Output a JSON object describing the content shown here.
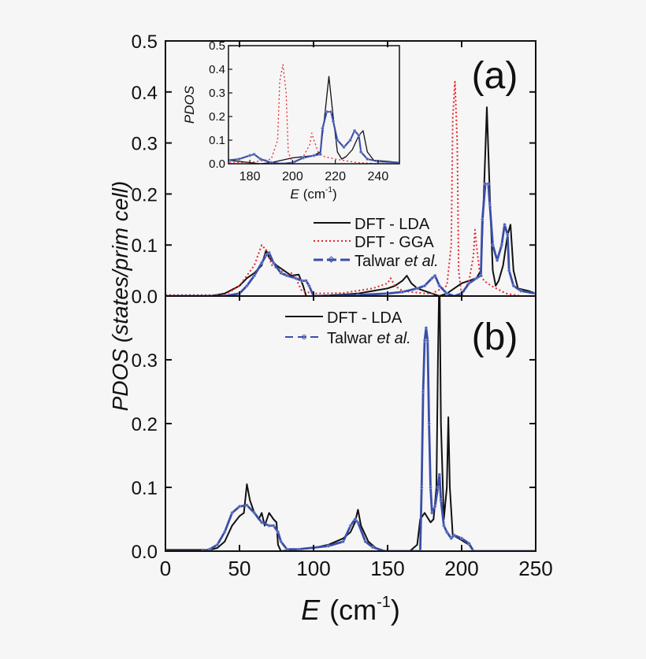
{
  "chart_data": [
    {
      "panel": "(a)",
      "type": "line",
      "xlabel": "E (cm-1)",
      "ylabel": "PDOS (states/prim cell)",
      "xlim": [
        0,
        250
      ],
      "ylim": [
        0,
        0.5
      ],
      "xticks": [
        "0",
        "50",
        "100",
        "150",
        "200",
        "250"
      ],
      "yticks": [
        "0.0",
        "0.1",
        "0.2",
        "0.3",
        "0.4",
        "0.5"
      ],
      "legend_position": "center-right",
      "series": [
        {
          "name": "DFT - LDA",
          "color": "#111111",
          "style": "solid",
          "x": [
            0,
            30,
            40,
            50,
            55,
            60,
            65,
            68,
            70,
            75,
            80,
            85,
            90,
            93,
            95,
            100,
            120,
            130,
            140,
            150,
            155,
            160,
            163,
            166,
            170,
            180,
            185,
            190,
            195,
            200,
            205,
            210,
            213,
            215,
            217,
            219,
            221,
            223,
            225,
            228,
            231,
            233,
            235,
            238,
            245,
            250
          ],
          "y": [
            0,
            0,
            0.005,
            0.02,
            0.035,
            0.045,
            0.06,
            0.09,
            0.075,
            0.06,
            0.05,
            0.04,
            0.042,
            0.02,
            0,
            0,
            0.003,
            0.005,
            0.01,
            0.015,
            0.02,
            0.03,
            0.04,
            0.025,
            0.015,
            0.005,
            0,
            0.005,
            0.015,
            0.025,
            0.03,
            0.035,
            0.05,
            0.2,
            0.37,
            0.2,
            0.05,
            0.02,
            0.03,
            0.06,
            0.12,
            0.14,
            0.05,
            0.015,
            0.01,
            0.005
          ]
        },
        {
          "name": "DFT - GGA",
          "color": "#e8262b",
          "style": "dotted",
          "x": [
            0,
            40,
            50,
            55,
            60,
            65,
            68,
            72,
            78,
            82,
            85,
            88,
            92,
            100,
            120,
            140,
            150,
            152,
            155,
            160,
            175,
            180,
            190,
            193,
            194,
            195.5,
            197,
            198,
            200,
            205,
            208,
            209,
            210,
            212,
            215,
            220,
            230,
            240,
            250
          ],
          "y": [
            0.002,
            0.002,
            0.02,
            0.04,
            0.06,
            0.1,
            0.09,
            0.06,
            0.05,
            0.04,
            0.045,
            0.035,
            0.01,
            0.005,
            0.006,
            0.015,
            0.025,
            0.035,
            0.02,
            0.01,
            0.005,
            0.005,
            0.02,
            0.1,
            0.35,
            0.42,
            0.3,
            0.05,
            0,
            0.03,
            0.08,
            0.13,
            0.1,
            0.05,
            0.03,
            0.02,
            0.005,
            0,
            0
          ]
        },
        {
          "name": "Talwar et al.",
          "color": "#3a4ea8",
          "style": "dash-dot-diamond",
          "x": [
            0,
            40,
            50,
            55,
            60,
            65,
            68,
            70,
            73,
            78,
            82,
            88,
            92,
            95,
            97,
            100,
            110,
            130,
            150,
            160,
            170,
            175,
            180,
            182,
            185,
            190,
            195,
            200,
            205,
            210,
            213,
            214,
            216,
            218,
            219,
            221,
            224,
            227,
            229,
            231,
            232,
            235,
            240,
            250
          ],
          "y": [
            0,
            0,
            0.005,
            0.02,
            0.04,
            0.065,
            0.08,
            0.085,
            0.065,
            0.045,
            0.04,
            0.035,
            0.03,
            0.03,
            0.02,
            0,
            0,
            0.002,
            0.005,
            0.008,
            0.015,
            0.02,
            0.035,
            0.04,
            0.02,
            0.005,
            0,
            0.005,
            0.025,
            0.035,
            0.04,
            0.15,
            0.22,
            0.22,
            0.18,
            0.1,
            0.07,
            0.1,
            0.14,
            0.12,
            0.05,
            0.02,
            0.01,
            0.005
          ]
        }
      ],
      "inset": {
        "xlabel": "E (cm-1)",
        "ylabel": "PDOS",
        "xlim": [
          170,
          250
        ],
        "ylim": [
          0,
          0.5
        ],
        "xticks": [
          "180",
          "200",
          "220",
          "240"
        ],
        "yticks": [
          "0.0",
          "0.1",
          "0.2",
          "0.3",
          "0.4",
          "0.5"
        ]
      }
    },
    {
      "panel": "(b)",
      "type": "line",
      "xlim": [
        0,
        250
      ],
      "ylim": [
        0,
        0.4
      ],
      "yticks": [
        "0.0",
        "0.1",
        "0.2",
        "0.3"
      ],
      "legend_position": "top-center",
      "series": [
        {
          "name": "DFT - LDA",
          "color": "#111111",
          "style": "solid",
          "x": [
            0,
            30,
            35,
            40,
            45,
            50,
            53,
            55,
            57,
            60,
            63,
            65,
            67,
            70,
            73,
            75,
            76,
            78,
            90,
            100,
            110,
            120,
            125,
            128,
            130,
            132,
            137,
            142,
            148,
            165,
            170,
            172,
            175,
            179,
            181,
            183,
            184,
            185,
            186,
            188,
            190,
            191,
            192,
            194,
            198,
            205,
            208,
            250
          ],
          "y": [
            0.002,
            0.002,
            0.005,
            0.015,
            0.04,
            0.055,
            0.06,
            0.105,
            0.08,
            0.06,
            0.05,
            0.06,
            0.04,
            0.06,
            0.05,
            0.045,
            0.01,
            0,
            0.003,
            0.005,
            0.01,
            0.02,
            0.03,
            0.045,
            0.065,
            0.04,
            0.015,
            0.005,
            0,
            0,
            0.01,
            0.05,
            0.06,
            0.045,
            0.05,
            0.1,
            0.3,
            0.45,
            0.2,
            0.05,
            0.1,
            0.21,
            0.1,
            0.025,
            0.02,
            0.01,
            0,
            0
          ]
        },
        {
          "name": "Talwar et al.",
          "color": "#3a4ea8",
          "style": "dash-dot-diamond",
          "x": [
            0,
            25,
            30,
            35,
            40,
            45,
            50,
            55,
            60,
            65,
            70,
            73,
            76,
            78,
            82,
            90,
            110,
            120,
            125,
            128,
            130,
            135,
            140,
            148,
            172,
            173,
            174,
            175,
            176,
            177,
            178,
            179,
            180,
            182,
            184,
            185,
            186,
            188,
            190,
            193,
            195,
            200,
            205,
            208,
            250
          ],
          "y": [
            0,
            0,
            0.003,
            0.01,
            0.03,
            0.06,
            0.07,
            0.072,
            0.06,
            0.045,
            0.04,
            0.04,
            0.03,
            0.015,
            0.003,
            0.003,
            0.008,
            0.015,
            0.04,
            0.05,
            0.045,
            0.015,
            0.006,
            0,
            0,
            0.1,
            0.25,
            0.33,
            0.35,
            0.33,
            0.2,
            0.1,
            0.06,
            0.07,
            0.1,
            0.12,
            0.08,
            0.04,
            0.03,
            0.02,
            0.025,
            0.02,
            0.012,
            0,
            0
          ]
        }
      ]
    }
  ],
  "labels": {
    "panel_a": "(a)",
    "panel_b": "(b)",
    "ylabel": "PDOS (states/prim cell)",
    "xlabel_main": "E",
    "xlabel_unit": "(cm",
    "xlabel_exp": "-1",
    "xlabel_close": ")",
    "inset_ylabel": "PDOS",
    "legend_a": [
      "DFT - LDA",
      "DFT - GGA",
      "Talwar "
    ],
    "legend_b": [
      "DFT - LDA",
      "Talwar "
    ],
    "et_al": "et al."
  }
}
